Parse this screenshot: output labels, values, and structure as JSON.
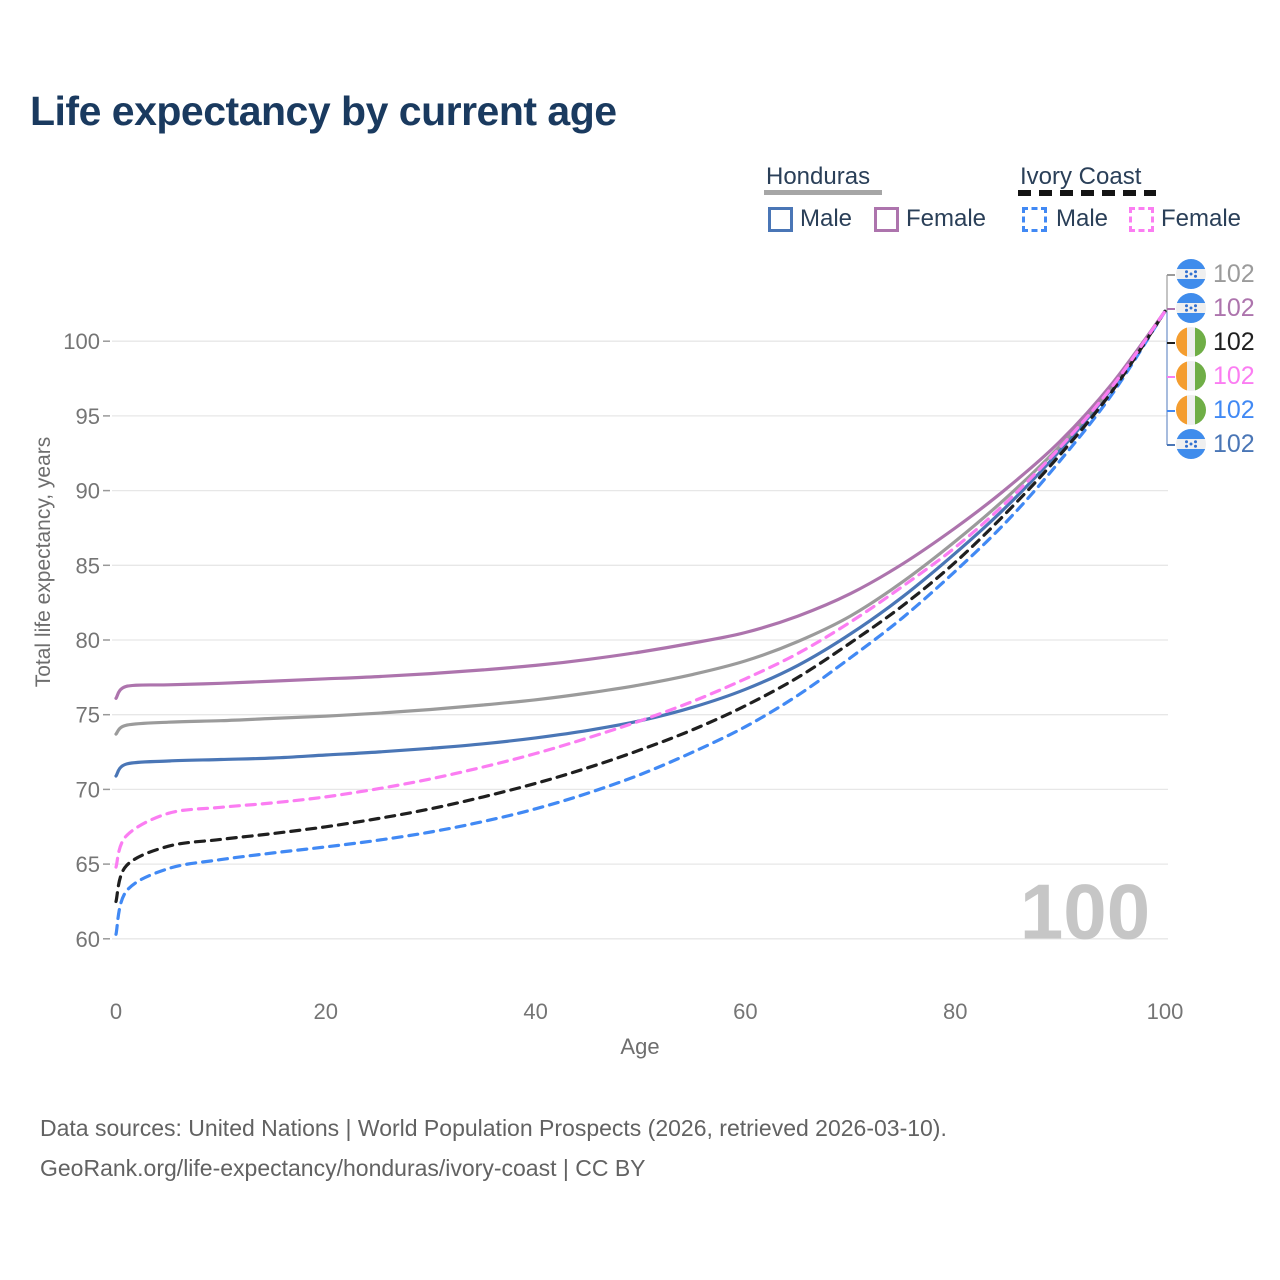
{
  "title": "Life expectancy by current age",
  "legend": {
    "groups": [
      {
        "label": "Honduras",
        "line_style": "solid",
        "line_color": "#a6a6a6",
        "items": [
          {
            "label": "Male",
            "color": "#4a76b6",
            "dash": false
          },
          {
            "label": "Female",
            "color": "#ad74ad",
            "dash": false
          }
        ]
      },
      {
        "label": "Ivory Coast",
        "line_style": "dashed",
        "line_color": "#141414",
        "items": [
          {
            "label": "Male",
            "color": "#4189f4",
            "dash": true
          },
          {
            "label": "Female",
            "color": "#fb7df2",
            "dash": true
          }
        ]
      }
    ]
  },
  "watermark": "100",
  "footer": {
    "line1": "Data sources: United Nations | World Population Prospects (2026, retrieved 2026-03-10).",
    "line2": "GeoRank.org/life-expectancy/honduras/ivory-coast | CC BY"
  },
  "chart_data": {
    "type": "line",
    "title": "Life expectancy by current age",
    "xlabel": "Age",
    "ylabel": "Total life expectancy, years",
    "xlim": [
      0,
      100
    ],
    "ylim": [
      60,
      103.5
    ],
    "grid": "horizontal-only",
    "legend_position": "top-right",
    "x_ticks": [
      0,
      20,
      40,
      60,
      80,
      100
    ],
    "y_ticks": [
      60,
      65,
      70,
      75,
      80,
      85,
      90,
      95,
      100
    ],
    "x": [
      0,
      1,
      5,
      10,
      15,
      20,
      25,
      30,
      35,
      40,
      45,
      50,
      55,
      60,
      65,
      70,
      75,
      80,
      85,
      90,
      95,
      100
    ],
    "series": [
      {
        "name": "Honduras Male",
        "country": "Honduras",
        "sex": "Male",
        "color": "#4a76b6",
        "dash": false,
        "values": [
          70.9,
          71.7,
          71.9,
          72.0,
          72.1,
          72.3,
          72.5,
          72.75,
          73.05,
          73.45,
          73.95,
          74.6,
          75.5,
          76.7,
          78.3,
          80.4,
          82.9,
          85.8,
          89.0,
          92.7,
          96.9,
          102
        ]
      },
      {
        "name": "Honduras Both sexes",
        "country": "Honduras",
        "sex": "Both",
        "color": "#9b9b9b",
        "dash": false,
        "values": [
          73.7,
          74.3,
          74.5,
          74.6,
          74.75,
          74.9,
          75.1,
          75.35,
          75.65,
          76.0,
          76.45,
          77.0,
          77.7,
          78.6,
          79.9,
          81.6,
          83.9,
          86.6,
          89.6,
          93.0,
          97.0,
          102
        ]
      },
      {
        "name": "Honduras Female",
        "country": "Honduras",
        "sex": "Female",
        "color": "#ad74ad",
        "dash": false,
        "values": [
          76.1,
          76.9,
          77.0,
          77.1,
          77.25,
          77.4,
          77.55,
          77.75,
          78.0,
          78.3,
          78.7,
          79.2,
          79.8,
          80.5,
          81.6,
          83.1,
          85.1,
          87.5,
          90.2,
          93.3,
          97.2,
          102
        ]
      },
      {
        "name": "Ivory Coast Male",
        "country": "Ivory Coast",
        "sex": "Male",
        "color": "#4189f4",
        "dash": true,
        "values": [
          60.3,
          63.2,
          64.7,
          65.3,
          65.75,
          66.15,
          66.6,
          67.15,
          67.85,
          68.7,
          69.75,
          71.0,
          72.5,
          74.2,
          76.3,
          78.8,
          81.5,
          84.6,
          88.0,
          92.0,
          96.5,
          102
        ]
      },
      {
        "name": "Ivory Coast Both sexes",
        "country": "Ivory Coast",
        "sex": "Both",
        "color": "#1f1f1f",
        "dash": true,
        "values": [
          62.5,
          64.9,
          66.2,
          66.65,
          67.05,
          67.5,
          68.05,
          68.7,
          69.5,
          70.4,
          71.45,
          72.65,
          74.0,
          75.6,
          77.5,
          79.8,
          82.3,
          85.2,
          88.6,
          92.4,
          96.7,
          102
        ]
      },
      {
        "name": "Ivory Coast Female",
        "country": "Ivory Coast",
        "sex": "Female",
        "color": "#fb7df2",
        "dash": true,
        "values": [
          64.8,
          66.9,
          68.4,
          68.8,
          69.1,
          69.5,
          70.05,
          70.7,
          71.5,
          72.4,
          73.45,
          74.6,
          75.9,
          77.4,
          79.1,
          81.2,
          83.6,
          86.2,
          89.3,
          92.9,
          97.0,
          102
        ]
      }
    ],
    "end_labels": [
      {
        "value": "102",
        "flag": "honduras",
        "color": "#9b9b9b",
        "series": "Honduras Both sexes"
      },
      {
        "value": "102",
        "flag": "honduras",
        "color": "#ad74ad",
        "series": "Honduras Female"
      },
      {
        "value": "102",
        "flag": "ivory-coast",
        "color": "#1f1f1f",
        "series": "Ivory Coast Both sexes"
      },
      {
        "value": "102",
        "flag": "ivory-coast",
        "color": "#fb7df2",
        "series": "Ivory Coast Female"
      },
      {
        "value": "102",
        "flag": "ivory-coast",
        "color": "#4189f4",
        "series": "Ivory Coast Male"
      },
      {
        "value": "102",
        "flag": "honduras",
        "color": "#4a76b6",
        "series": "Honduras Male"
      }
    ],
    "flag_colors": {
      "honduras_blue": "#3f8cec",
      "honduras_star": "#2f6fd0",
      "flag_white": "#efefef",
      "ivory_orange": "#f49d2f",
      "ivory_green": "#6fae46"
    },
    "style": {
      "gridline_color": "#e7e7e7",
      "tick_color": "#999999",
      "axis_text_color": "#757575",
      "leader_gray": "#b0b0b0",
      "leader_blue": "#8aa6d4"
    }
  }
}
